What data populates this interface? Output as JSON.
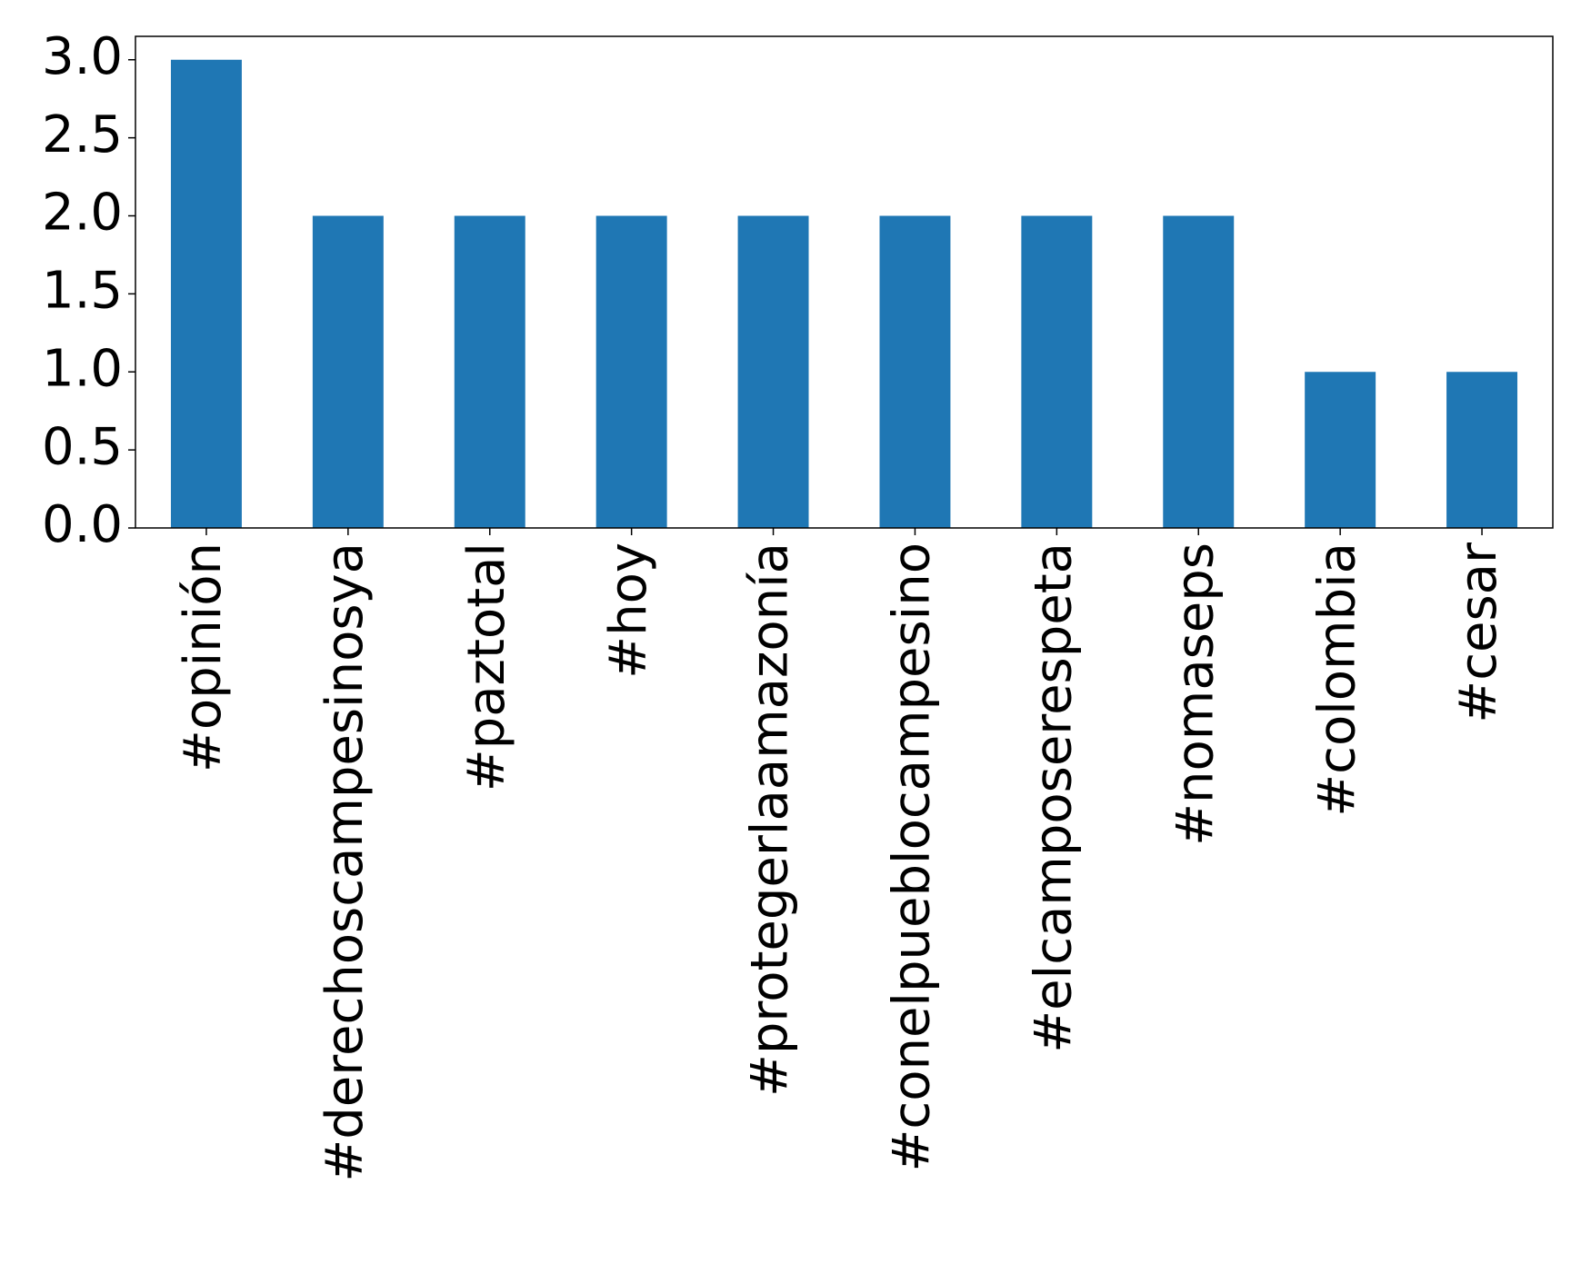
{
  "chart_data": {
    "type": "bar",
    "categories": [
      "#opinión",
      "#derechoscampesinosya",
      "#paztotal",
      "#hoy",
      "#protegerlaamazonía",
      "#conelpueblocampesino",
      "#elcamposerespeta",
      "#nomaseps",
      "#colombia",
      "#cesar"
    ],
    "values": [
      3,
      2,
      2,
      2,
      2,
      2,
      2,
      2,
      1,
      1
    ],
    "color": "#1f77b4",
    "ylim": [
      0,
      3.15
    ],
    "yticks": [
      {
        "value": 0,
        "label": "0.0"
      },
      0.5,
      {
        "value": 1,
        "label": "1.0"
      },
      1.5,
      {
        "value": 2,
        "label": "2.0"
      },
      2.5,
      {
        "value": 3,
        "label": "3.0"
      }
    ],
    "grid": false
  }
}
